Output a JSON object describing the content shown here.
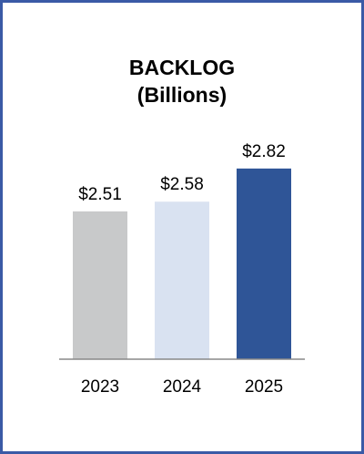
{
  "chart_data": {
    "type": "bar",
    "title": "BACKLOG",
    "subtitle": "(Billions)",
    "categories": [
      "2023",
      "2024",
      "2025"
    ],
    "values": [
      2.51,
      2.58,
      2.82
    ],
    "value_labels": [
      "$2.51",
      "$2.58",
      "$2.82"
    ],
    "colors": [
      "#c8c9ca",
      "#d9e2f1",
      "#2f5597"
    ],
    "ylim": [
      1.44,
      3.05
    ]
  }
}
